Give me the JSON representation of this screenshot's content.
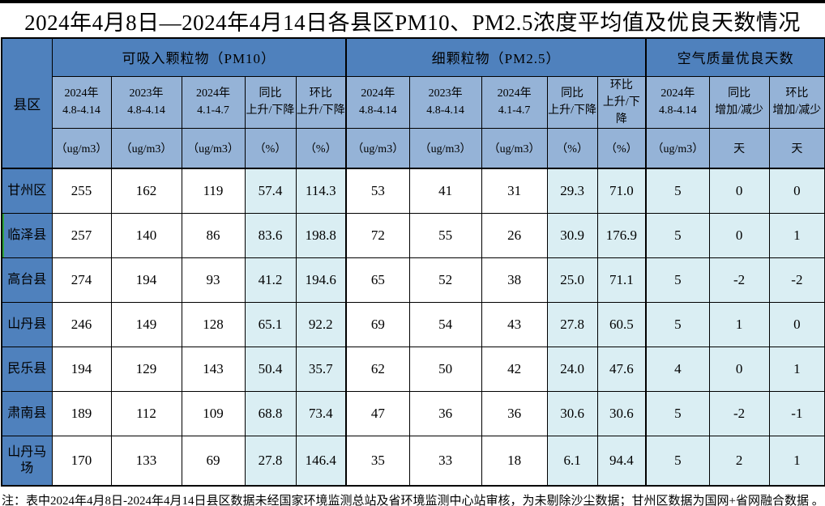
{
  "title": "2024年4月8日—2024年4月14日各县区PM10、PM2.5浓度平均值及优良天数情况",
  "footnote": "注：表中2024年4月8日-2024年4月14日县区数据未经国家环境监测总站及省环境监测中心站审核，为未剔除沙尘数据；甘州区数据为国网+省网融合数据 。",
  "colors": {
    "header_dark_blue": "#4f81bd",
    "header_light_blue": "#95b3d7",
    "highlight_cyan": "#daeef3",
    "value_red": "#ff0000",
    "border_black": "#000000",
    "flag_green": "#2fa23c"
  },
  "table": {
    "corner_label": "县区",
    "groups": [
      {
        "label": "可吸入颗粒物（PM10）",
        "span": 5
      },
      {
        "label": "细颗粒物（PM2.5）",
        "span": 5
      },
      {
        "label": "空气质量优良天数",
        "span": 3
      }
    ],
    "columns": [
      {
        "l1": "2024年",
        "l2": "4.8-4.14",
        "unit": "（ug/m3）",
        "highlight": false
      },
      {
        "l1": "2023年",
        "l2": "4.8-4.14",
        "unit": "（ug/m3）",
        "highlight": false
      },
      {
        "l1": "2024年",
        "l2": "4.1-4.7",
        "unit": "（ug/m3）",
        "highlight": false
      },
      {
        "l1": "同比",
        "l2": "上升/下降",
        "unit": "（%）",
        "highlight": true
      },
      {
        "l1": "环比",
        "l2": "上升/下降",
        "unit": "（%）",
        "highlight": true
      },
      {
        "l1": "2024年",
        "l2": "4.8-4.14",
        "unit": "（ug/m3）",
        "highlight": false
      },
      {
        "l1": "2023年",
        "l2": "4.8-4.14",
        "unit": "（ug/m3）",
        "highlight": false
      },
      {
        "l1": "2024年",
        "l2": "4.1-4.7",
        "unit": "（ug/m3）",
        "highlight": false
      },
      {
        "l1": "同比",
        "l2": "上升/下降",
        "unit": "（%）",
        "highlight": true
      },
      {
        "l1": "环比",
        "l2": "上升/下降",
        "unit": "（%）",
        "highlight": true
      },
      {
        "l1": "2024年",
        "l2": "4.8-4.14",
        "unit": "（ug/m3）",
        "highlight": true
      },
      {
        "l1": "同比",
        "l2": "增加/减少",
        "unit": "天",
        "highlight": true
      },
      {
        "l1": "环比",
        "l2": "增加/减少",
        "unit": "天",
        "highlight": true
      }
    ],
    "rows": [
      {
        "name": "甘州区",
        "flagged": false,
        "tall": false,
        "values": [
          "255",
          "162",
          "119",
          "57.4",
          "114.3",
          "53",
          "41",
          "31",
          "29.3",
          "71.0",
          "5",
          "0",
          "0"
        ]
      },
      {
        "name": "临泽县",
        "flagged": true,
        "tall": false,
        "values": [
          "257",
          "140",
          "86",
          "83.6",
          "198.8",
          "72",
          "55",
          "26",
          "30.9",
          "176.9",
          "5",
          "0",
          "1"
        ]
      },
      {
        "name": "高台县",
        "flagged": false,
        "tall": false,
        "values": [
          "274",
          "194",
          "93",
          "41.2",
          "194.6",
          "65",
          "52",
          "38",
          "25.0",
          "71.1",
          "5",
          "-2",
          "-2"
        ]
      },
      {
        "name": "山丹县",
        "flagged": false,
        "tall": false,
        "values": [
          "246",
          "149",
          "128",
          "65.1",
          "92.2",
          "69",
          "54",
          "43",
          "27.8",
          "60.5",
          "5",
          "1",
          "0"
        ]
      },
      {
        "name": "民乐县",
        "flagged": false,
        "tall": false,
        "values": [
          "194",
          "129",
          "143",
          "50.4",
          "35.7",
          "62",
          "50",
          "42",
          "24.0",
          "47.6",
          "4",
          "0",
          "1"
        ]
      },
      {
        "name": "肃南县",
        "flagged": false,
        "tall": false,
        "values": [
          "189",
          "112",
          "109",
          "68.8",
          "73.4",
          "47",
          "36",
          "36",
          "30.6",
          "30.6",
          "5",
          "-2",
          "-1"
        ]
      },
      {
        "name": "山丹马场",
        "flagged": false,
        "tall": true,
        "values": [
          "170",
          "133",
          "69",
          "27.8",
          "146.4",
          "35",
          "33",
          "18",
          "6.1",
          "94.4",
          "5",
          "2",
          "1"
        ]
      }
    ]
  }
}
